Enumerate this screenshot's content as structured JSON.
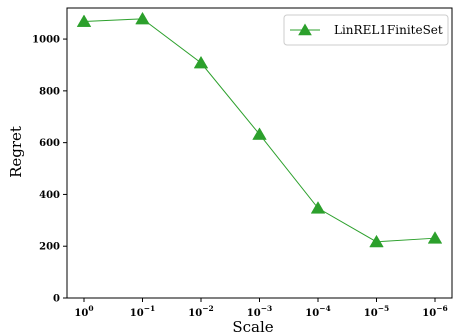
{
  "chart_data": {
    "type": "line",
    "title": "",
    "xlabel": "Scale",
    "ylabel": "Regret",
    "x_tick_labels": [
      {
        "base": "10",
        "exp": "0"
      },
      {
        "base": "10",
        "exp": "−1"
      },
      {
        "base": "10",
        "exp": "−2"
      },
      {
        "base": "10",
        "exp": "−3"
      },
      {
        "base": "10",
        "exp": "−4"
      },
      {
        "base": "10",
        "exp": "−5"
      },
      {
        "base": "10",
        "exp": "−6"
      }
    ],
    "x": [
      1,
      0.1,
      0.01,
      0.001,
      0.0001,
      1e-05,
      1e-06
    ],
    "x_scale": "log (decreasing)",
    "ylim": [
      0,
      1120
    ],
    "y_ticks": [
      "0",
      "200",
      "400",
      "600",
      "800",
      "1000"
    ],
    "series": [
      {
        "name": "LinREL1FiniteSet",
        "values": [
          1068,
          1078,
          908,
          632,
          347,
          217,
          231
        ],
        "color": "#2ca02c",
        "marker": "triangle-up"
      }
    ],
    "legend_position": "top-right",
    "grid": false
  }
}
